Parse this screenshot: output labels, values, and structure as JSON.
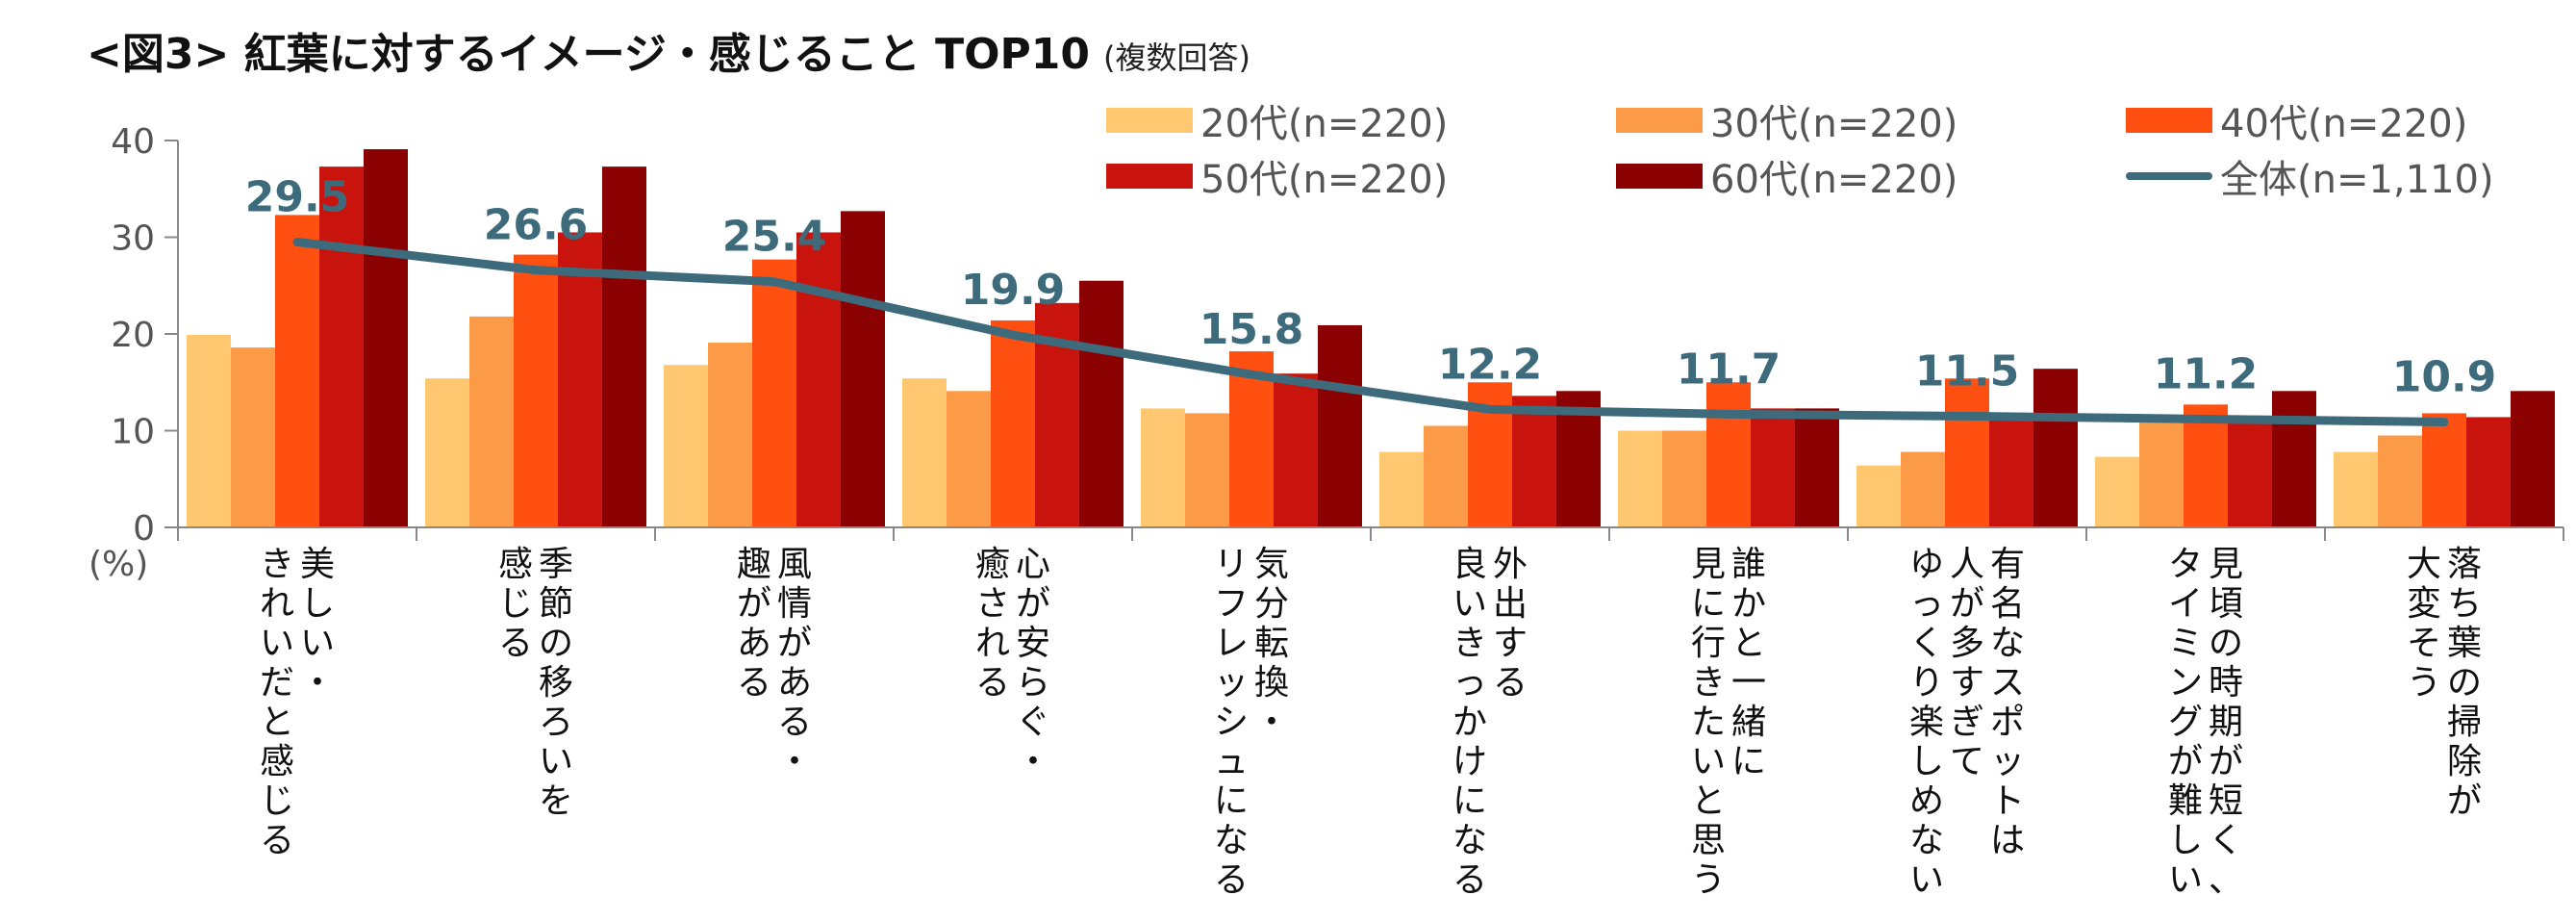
{
  "title": "<図3> 紅葉に対するイメージ・感じること TOP10",
  "subtitle": "(複数回答)",
  "legend": {
    "s20": "20代(n=220)",
    "s30": "30代(n=220)",
    "s40": "40代(n=220)",
    "s50": "50代(n=220)",
    "s60": "60代(n=220)",
    "total": "全体(n=1,110)"
  },
  "chart_data": {
    "type": "bar",
    "title": "<図3> 紅葉に対するイメージ・感じること TOP10",
    "ylabel": "(%)",
    "ylim": [
      0,
      40
    ],
    "yticks": [
      0,
      10,
      20,
      30,
      40
    ],
    "grid": false,
    "legend_position": "top-right",
    "categories": [
      [
        "美しい・",
        "きれいだと感じる"
      ],
      [
        "季節の移ろいを",
        "感じる"
      ],
      [
        "風情がある・",
        "趣がある"
      ],
      [
        "心が安らぐ・",
        "癒される"
      ],
      [
        "気分転換・",
        "リフレッシュになる"
      ],
      [
        "外出する",
        "良いきっかけになる"
      ],
      [
        "誰かと一緒に",
        "見に行きたいと思う"
      ],
      [
        "有名なスポットは",
        "人が多すぎて",
        "ゆっくり楽しめない"
      ],
      [
        "見頃の時期が短く、",
        "タイミングが難しい"
      ],
      [
        "落ち葉の掃除が",
        "大変そう"
      ]
    ],
    "series": [
      {
        "name": "20代(n=220)",
        "color": "#FFC870",
        "values": [
          19.9,
          15.4,
          16.8,
          15.4,
          12.3,
          7.8,
          10.0,
          6.4,
          7.3,
          7.8
        ]
      },
      {
        "name": "30代(n=220)",
        "color": "#FB9A47",
        "values": [
          18.6,
          21.8,
          19.1,
          14.1,
          11.8,
          10.5,
          10.0,
          7.8,
          11.4,
          9.5
        ]
      },
      {
        "name": "40代(n=220)",
        "color": "#FF5012",
        "values": [
          32.3,
          28.2,
          27.7,
          21.4,
          18.2,
          15.0,
          15.0,
          15.4,
          12.7,
          11.8
        ]
      },
      {
        "name": "50代(n=220)",
        "color": "#C8140C",
        "values": [
          37.3,
          30.5,
          30.5,
          23.2,
          15.9,
          13.6,
          12.3,
          11.4,
          11.4,
          11.4
        ]
      },
      {
        "name": "60代(n=220)",
        "color": "#8B0000",
        "values": [
          39.1,
          37.3,
          32.7,
          25.5,
          20.9,
          14.1,
          12.3,
          16.4,
          14.1,
          14.1
        ]
      }
    ],
    "line": {
      "name": "全体(n=1,110)",
      "color": "#3D6B7C",
      "values": [
        29.5,
        26.6,
        25.4,
        19.9,
        15.8,
        12.2,
        11.7,
        11.5,
        11.2,
        10.9
      ]
    }
  }
}
